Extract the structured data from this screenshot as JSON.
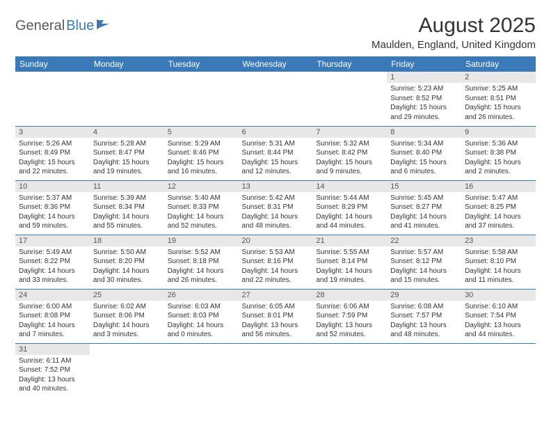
{
  "logo": {
    "part1": "General",
    "part2": "Blue"
  },
  "title": "August 2025",
  "location": "Maulden, England, United Kingdom",
  "colors": {
    "header_bg": "#3a7ab8",
    "header_fg": "#ffffff",
    "daynum_bg": "#e8e8e8",
    "border": "#3a7ab8",
    "logo_gray": "#5a5a5a",
    "logo_blue": "#3a7ab8"
  },
  "weekdays": [
    "Sunday",
    "Monday",
    "Tuesday",
    "Wednesday",
    "Thursday",
    "Friday",
    "Saturday"
  ],
  "weeks": [
    [
      null,
      null,
      null,
      null,
      null,
      {
        "n": "1",
        "sr": "Sunrise: 5:23 AM",
        "ss": "Sunset: 8:52 PM",
        "d1": "Daylight: 15 hours",
        "d2": "and 29 minutes."
      },
      {
        "n": "2",
        "sr": "Sunrise: 5:25 AM",
        "ss": "Sunset: 8:51 PM",
        "d1": "Daylight: 15 hours",
        "d2": "and 26 minutes."
      }
    ],
    [
      {
        "n": "3",
        "sr": "Sunrise: 5:26 AM",
        "ss": "Sunset: 8:49 PM",
        "d1": "Daylight: 15 hours",
        "d2": "and 22 minutes."
      },
      {
        "n": "4",
        "sr": "Sunrise: 5:28 AM",
        "ss": "Sunset: 8:47 PM",
        "d1": "Daylight: 15 hours",
        "d2": "and 19 minutes."
      },
      {
        "n": "5",
        "sr": "Sunrise: 5:29 AM",
        "ss": "Sunset: 8:46 PM",
        "d1": "Daylight: 15 hours",
        "d2": "and 16 minutes."
      },
      {
        "n": "6",
        "sr": "Sunrise: 5:31 AM",
        "ss": "Sunset: 8:44 PM",
        "d1": "Daylight: 15 hours",
        "d2": "and 12 minutes."
      },
      {
        "n": "7",
        "sr": "Sunrise: 5:32 AM",
        "ss": "Sunset: 8:42 PM",
        "d1": "Daylight: 15 hours",
        "d2": "and 9 minutes."
      },
      {
        "n": "8",
        "sr": "Sunrise: 5:34 AM",
        "ss": "Sunset: 8:40 PM",
        "d1": "Daylight: 15 hours",
        "d2": "and 6 minutes."
      },
      {
        "n": "9",
        "sr": "Sunrise: 5:36 AM",
        "ss": "Sunset: 8:38 PM",
        "d1": "Daylight: 15 hours",
        "d2": "and 2 minutes."
      }
    ],
    [
      {
        "n": "10",
        "sr": "Sunrise: 5:37 AM",
        "ss": "Sunset: 8:36 PM",
        "d1": "Daylight: 14 hours",
        "d2": "and 59 minutes."
      },
      {
        "n": "11",
        "sr": "Sunrise: 5:39 AM",
        "ss": "Sunset: 8:34 PM",
        "d1": "Daylight: 14 hours",
        "d2": "and 55 minutes."
      },
      {
        "n": "12",
        "sr": "Sunrise: 5:40 AM",
        "ss": "Sunset: 8:33 PM",
        "d1": "Daylight: 14 hours",
        "d2": "and 52 minutes."
      },
      {
        "n": "13",
        "sr": "Sunrise: 5:42 AM",
        "ss": "Sunset: 8:31 PM",
        "d1": "Daylight: 14 hours",
        "d2": "and 48 minutes."
      },
      {
        "n": "14",
        "sr": "Sunrise: 5:44 AM",
        "ss": "Sunset: 8:29 PM",
        "d1": "Daylight: 14 hours",
        "d2": "and 44 minutes."
      },
      {
        "n": "15",
        "sr": "Sunrise: 5:45 AM",
        "ss": "Sunset: 8:27 PM",
        "d1": "Daylight: 14 hours",
        "d2": "and 41 minutes."
      },
      {
        "n": "16",
        "sr": "Sunrise: 5:47 AM",
        "ss": "Sunset: 8:25 PM",
        "d1": "Daylight: 14 hours",
        "d2": "and 37 minutes."
      }
    ],
    [
      {
        "n": "17",
        "sr": "Sunrise: 5:49 AM",
        "ss": "Sunset: 8:22 PM",
        "d1": "Daylight: 14 hours",
        "d2": "and 33 minutes."
      },
      {
        "n": "18",
        "sr": "Sunrise: 5:50 AM",
        "ss": "Sunset: 8:20 PM",
        "d1": "Daylight: 14 hours",
        "d2": "and 30 minutes."
      },
      {
        "n": "19",
        "sr": "Sunrise: 5:52 AM",
        "ss": "Sunset: 8:18 PM",
        "d1": "Daylight: 14 hours",
        "d2": "and 26 minutes."
      },
      {
        "n": "20",
        "sr": "Sunrise: 5:53 AM",
        "ss": "Sunset: 8:16 PM",
        "d1": "Daylight: 14 hours",
        "d2": "and 22 minutes."
      },
      {
        "n": "21",
        "sr": "Sunrise: 5:55 AM",
        "ss": "Sunset: 8:14 PM",
        "d1": "Daylight: 14 hours",
        "d2": "and 19 minutes."
      },
      {
        "n": "22",
        "sr": "Sunrise: 5:57 AM",
        "ss": "Sunset: 8:12 PM",
        "d1": "Daylight: 14 hours",
        "d2": "and 15 minutes."
      },
      {
        "n": "23",
        "sr": "Sunrise: 5:58 AM",
        "ss": "Sunset: 8:10 PM",
        "d1": "Daylight: 14 hours",
        "d2": "and 11 minutes."
      }
    ],
    [
      {
        "n": "24",
        "sr": "Sunrise: 6:00 AM",
        "ss": "Sunset: 8:08 PM",
        "d1": "Daylight: 14 hours",
        "d2": "and 7 minutes."
      },
      {
        "n": "25",
        "sr": "Sunrise: 6:02 AM",
        "ss": "Sunset: 8:06 PM",
        "d1": "Daylight: 14 hours",
        "d2": "and 3 minutes."
      },
      {
        "n": "26",
        "sr": "Sunrise: 6:03 AM",
        "ss": "Sunset: 8:03 PM",
        "d1": "Daylight: 14 hours",
        "d2": "and 0 minutes."
      },
      {
        "n": "27",
        "sr": "Sunrise: 6:05 AM",
        "ss": "Sunset: 8:01 PM",
        "d1": "Daylight: 13 hours",
        "d2": "and 56 minutes."
      },
      {
        "n": "28",
        "sr": "Sunrise: 6:06 AM",
        "ss": "Sunset: 7:59 PM",
        "d1": "Daylight: 13 hours",
        "d2": "and 52 minutes."
      },
      {
        "n": "29",
        "sr": "Sunrise: 6:08 AM",
        "ss": "Sunset: 7:57 PM",
        "d1": "Daylight: 13 hours",
        "d2": "and 48 minutes."
      },
      {
        "n": "30",
        "sr": "Sunrise: 6:10 AM",
        "ss": "Sunset: 7:54 PM",
        "d1": "Daylight: 13 hours",
        "d2": "and 44 minutes."
      }
    ],
    [
      {
        "n": "31",
        "sr": "Sunrise: 6:11 AM",
        "ss": "Sunset: 7:52 PM",
        "d1": "Daylight: 13 hours",
        "d2": "and 40 minutes."
      },
      null,
      null,
      null,
      null,
      null,
      null
    ]
  ]
}
